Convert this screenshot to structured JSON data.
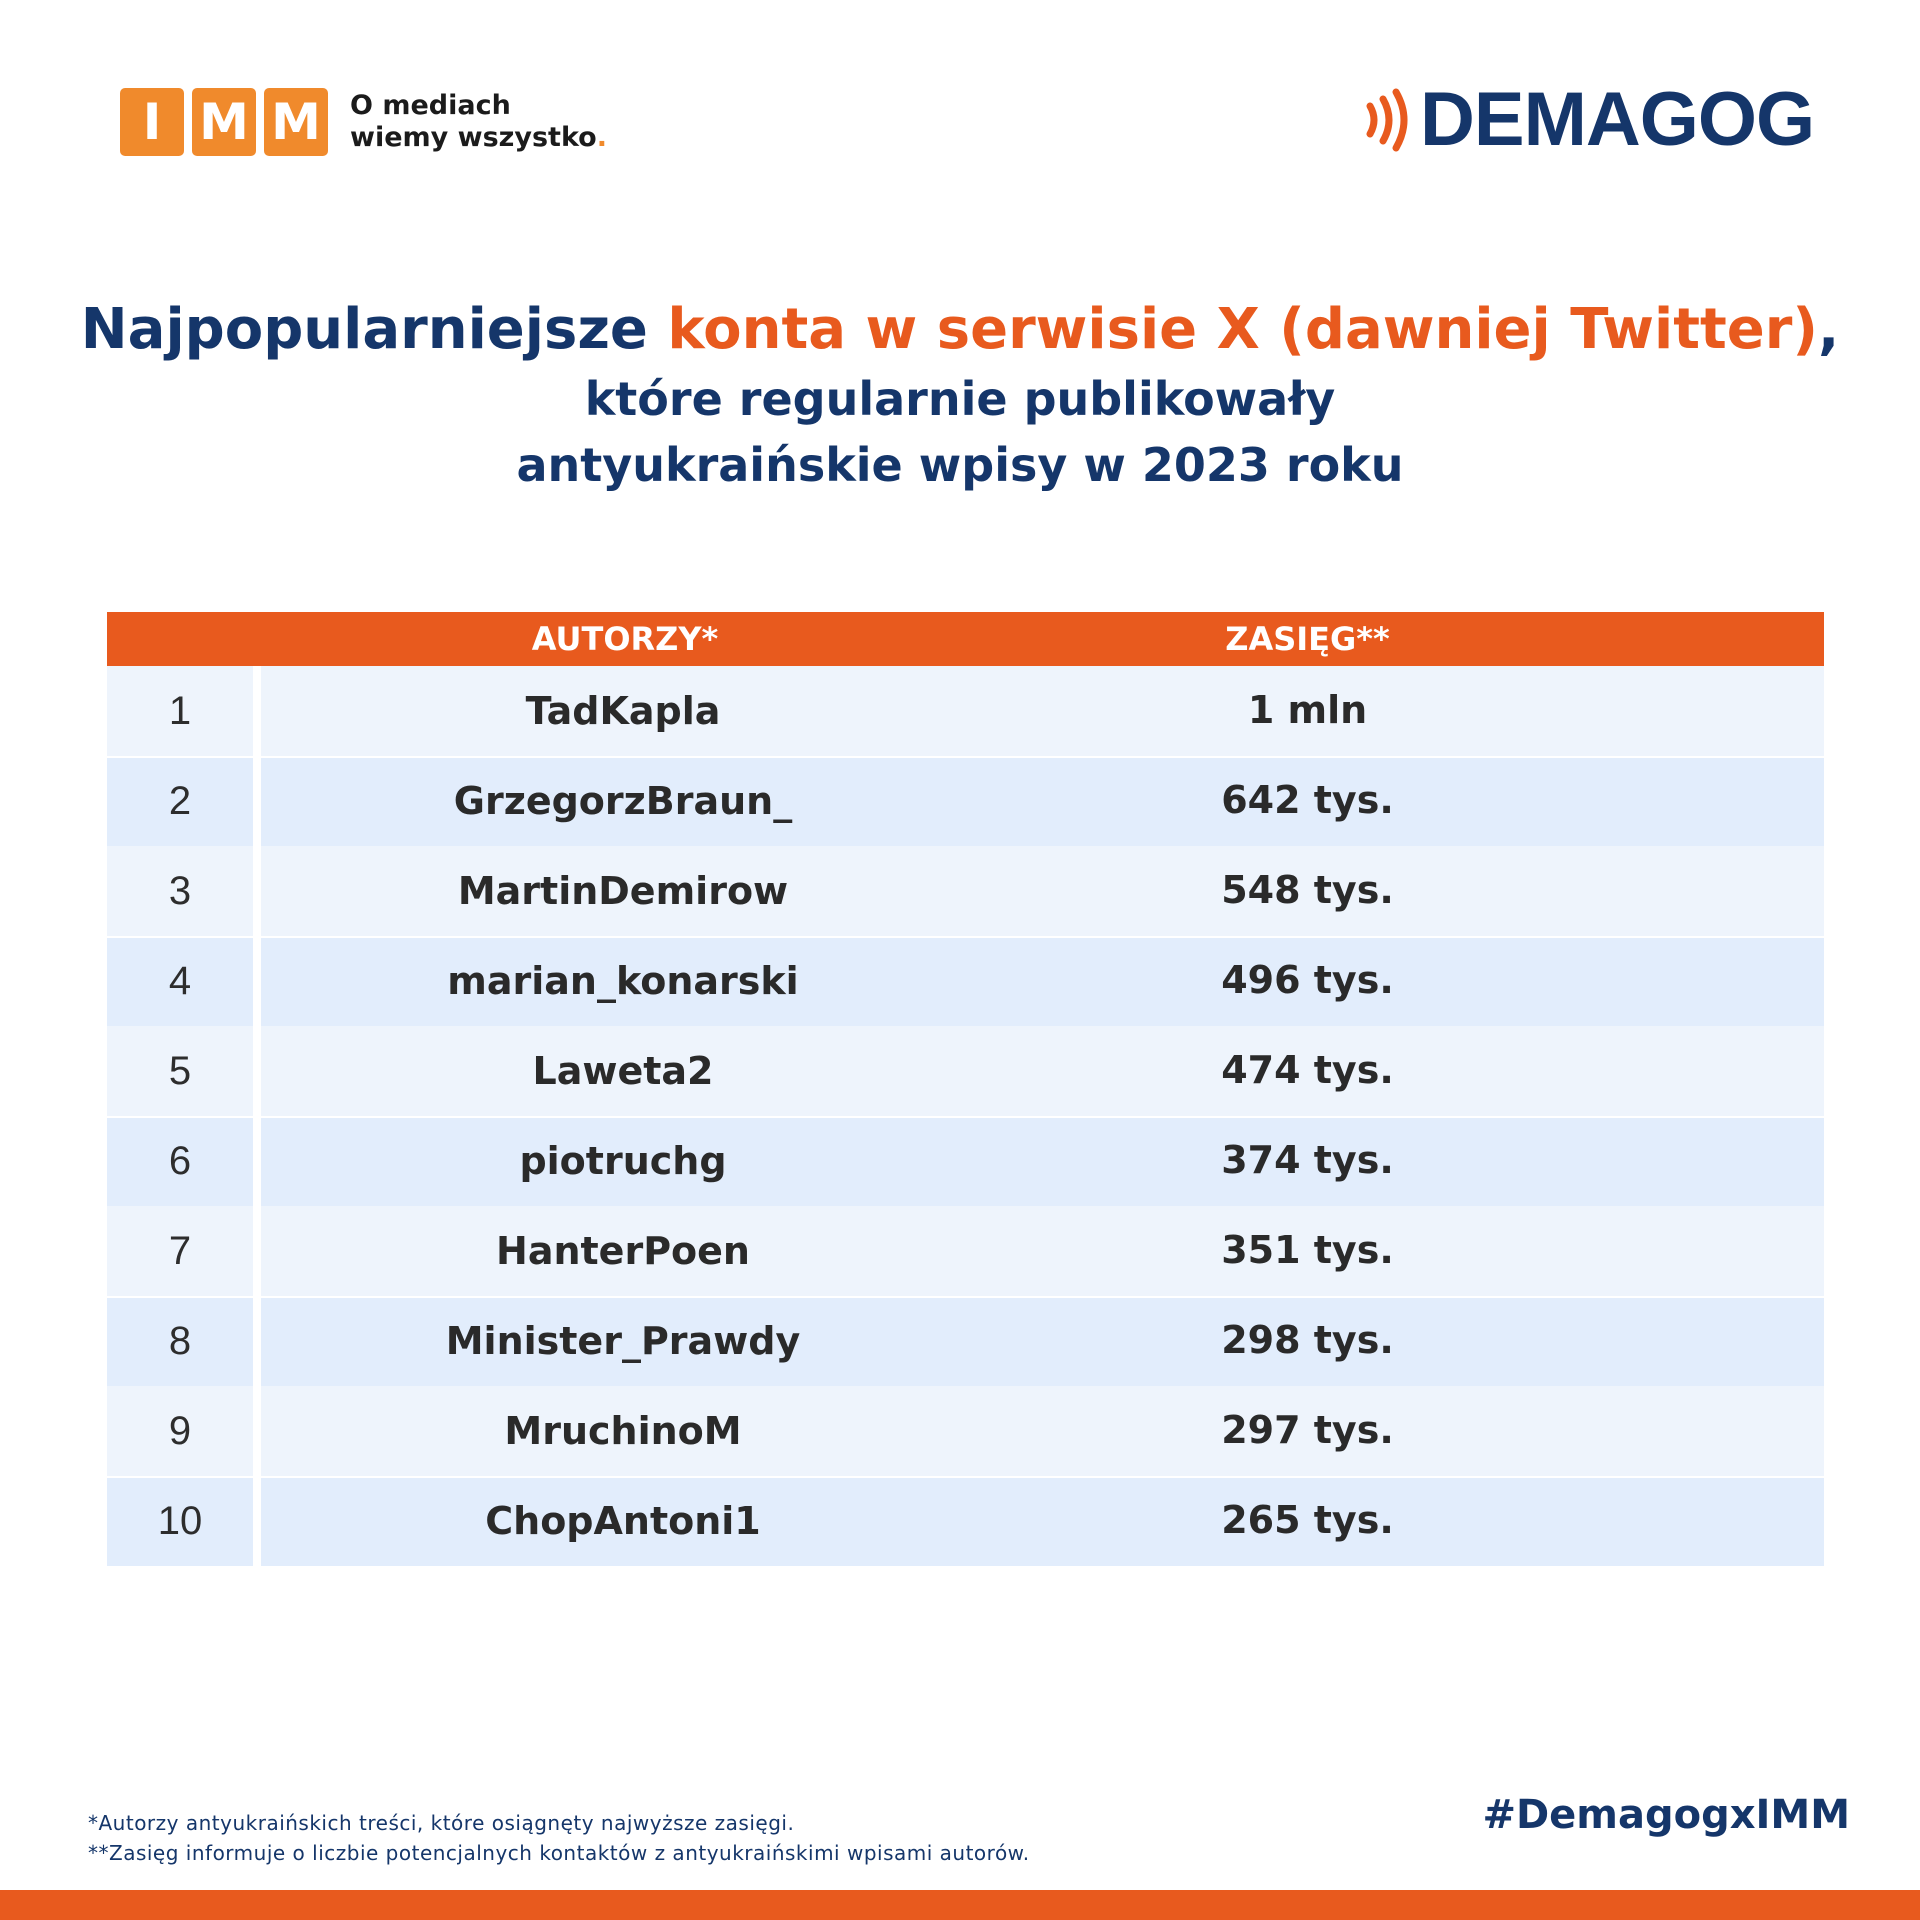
{
  "imm_logo": {
    "letters": [
      "I",
      "M",
      "M"
    ],
    "tagline_line1": "O mediach",
    "tagline_line2": "wiemy wszystko",
    "tagline_dot": "."
  },
  "demagog_logo": {
    "icon": "signal-waves-icon",
    "wordmark": "DEMAGOG"
  },
  "title": {
    "part1": "Najpopularniejsze ",
    "accent": "konta w serwisie X (dawniej Twitter)",
    "part2": ",",
    "line2": "które regularnie publikowały",
    "line3": "antyukraińskie wpisy w 2023 roku"
  },
  "table": {
    "headers": {
      "authors": "AUTORZY*",
      "reach": "ZASIĘG**"
    },
    "rows": [
      {
        "rank": "1",
        "author": "TadKapla",
        "reach": "1 mln"
      },
      {
        "rank": "2",
        "author": "GrzegorzBraun_",
        "reach": "642 tys."
      },
      {
        "rank": "3",
        "author": "MartinDemirow",
        "reach": "548 tys."
      },
      {
        "rank": "4",
        "author": "marian_konarski",
        "reach": "496 tys."
      },
      {
        "rank": "5",
        "author": "Laweta2",
        "reach": "474 tys."
      },
      {
        "rank": "6",
        "author": "piotruchg",
        "reach": "374 tys."
      },
      {
        "rank": "7",
        "author": "HanterPoen",
        "reach": "351 tys."
      },
      {
        "rank": "8",
        "author": "Minister_Prawdy",
        "reach": "298 tys."
      },
      {
        "rank": "9",
        "author": "MruchinoM",
        "reach": "297 tys."
      },
      {
        "rank": "10",
        "author": "ChopAntoni1",
        "reach": "265 tys."
      }
    ]
  },
  "footnotes": {
    "note1": "*Autorzy antyukraińskich treści, które osiągnęty najwyższe zasięgi.",
    "note2": "**Zasięg informuje o liczbie potencjalnych kontaktów z antyukraińskimi wpisami autorów."
  },
  "hashtag": "#DemagogxIMM",
  "colors": {
    "navy": "#15366a",
    "orange": "#e85a1e",
    "imm_orange": "#f08a2c",
    "row_light": "#eef4fc",
    "row_dark": "#e2edfc"
  }
}
